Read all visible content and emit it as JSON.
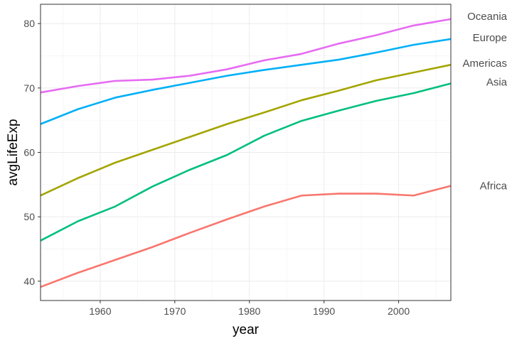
{
  "chart_data": {
    "type": "line",
    "title": "",
    "xlabel": "year",
    "ylabel": "avgLifeExp",
    "xlim": [
      1952,
      2007
    ],
    "ylim": [
      37,
      83
    ],
    "x_ticks": [
      1960,
      1970,
      1980,
      1990,
      2000
    ],
    "y_ticks": [
      40,
      50,
      60,
      70,
      80
    ],
    "grid": true,
    "legend": "direct labels at right end of each line",
    "x": [
      1952,
      1957,
      1962,
      1967,
      1972,
      1977,
      1982,
      1987,
      1992,
      1997,
      2002,
      2007
    ],
    "series": [
      {
        "name": "Africa",
        "color": "#F8766D",
        "values": [
          39.1,
          41.3,
          43.3,
          45.3,
          47.5,
          49.6,
          51.6,
          53.3,
          53.6,
          53.6,
          53.3,
          54.8
        ]
      },
      {
        "name": "Americas",
        "color": "#A3A500",
        "values": [
          53.3,
          56.0,
          58.4,
          60.4,
          62.4,
          64.4,
          66.2,
          68.1,
          69.6,
          71.2,
          72.4,
          73.6
        ]
      },
      {
        "name": "Asia",
        "color": "#00BF7D",
        "values": [
          46.3,
          49.3,
          51.6,
          54.7,
          57.3,
          59.6,
          62.6,
          64.9,
          66.5,
          68.0,
          69.2,
          70.7
        ]
      },
      {
        "name": "Europe",
        "color": "#00B0F6",
        "values": [
          64.4,
          66.7,
          68.5,
          69.7,
          70.8,
          71.9,
          72.8,
          73.6,
          74.4,
          75.5,
          76.7,
          77.6
        ]
      },
      {
        "name": "Oceania",
        "color": "#E76BF3",
        "values": [
          69.3,
          70.3,
          71.1,
          71.3,
          71.9,
          72.9,
          74.3,
          75.3,
          76.9,
          78.2,
          79.7,
          80.7
        ]
      }
    ]
  }
}
